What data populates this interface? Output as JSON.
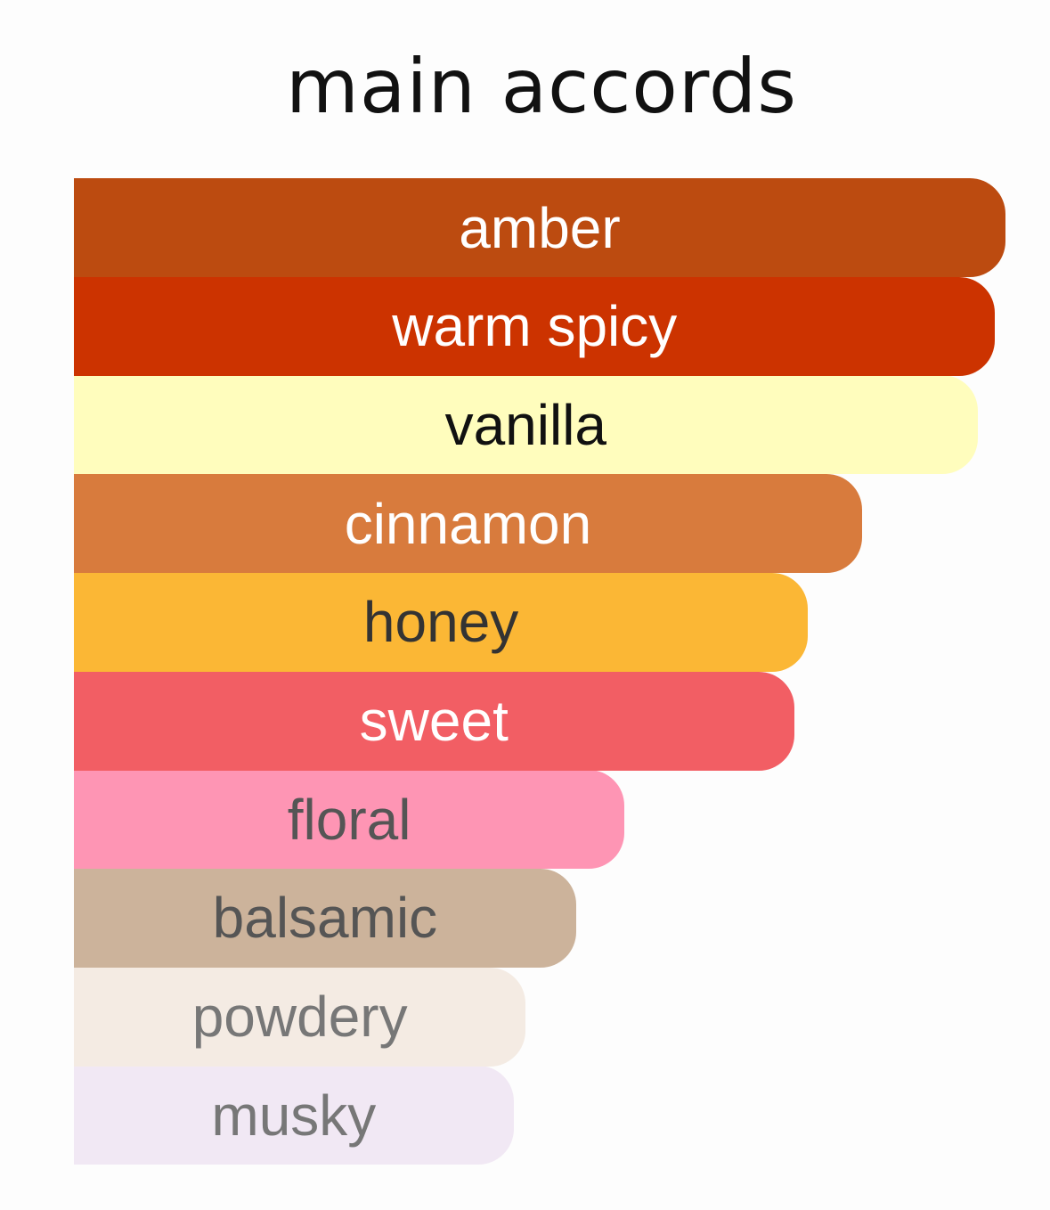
{
  "chart_data": {
    "type": "bar",
    "orientation": "horizontal",
    "title": "main accords",
    "unit": "percent of strongest accord",
    "categories": [
      "amber",
      "warm spicy",
      "vanilla",
      "cinnamon",
      "honey",
      "sweet",
      "floral",
      "balsamic",
      "powdery",
      "musky"
    ],
    "values": [
      100,
      98.9,
      97.0,
      84.6,
      78.8,
      77.3,
      59.1,
      53.9,
      48.5,
      47.2
    ],
    "colors": [
      "#bc4b10",
      "#cc3300",
      "#fffdbd",
      "#d87b3d",
      "#fbb735",
      "#f25e64",
      "#fe95b4",
      "#ccb39b",
      "#f4ebe3",
      "#f1e8f4"
    ],
    "label_colors": [
      "#ffffff",
      "#ffffff",
      "#111111",
      "#ffffff",
      "#333333",
      "#ffffff",
      "#555555",
      "#555555",
      "#777777",
      "#777777"
    ],
    "grid": false,
    "legend": "none"
  }
}
